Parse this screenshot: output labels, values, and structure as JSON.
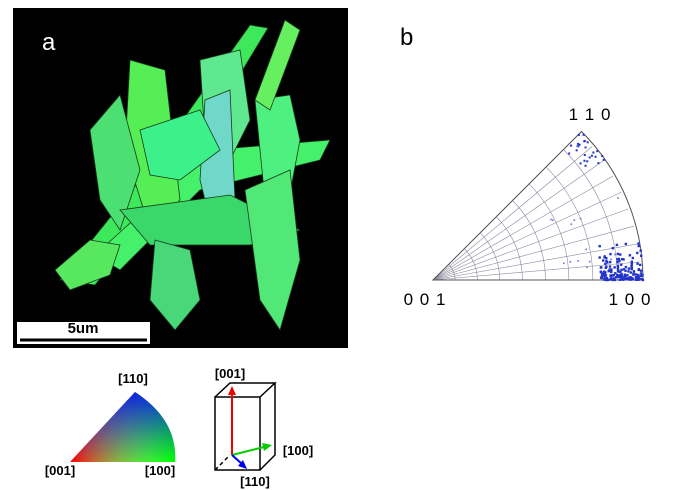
{
  "panel_a": {
    "label": "a",
    "scale_bar": "5um"
  },
  "color_key": {
    "triangle": {
      "top": "[110]",
      "left": "[001]",
      "right": "[100]"
    },
    "prism": {
      "top": "[001]",
      "right": "[100]",
      "bottom": "[110]"
    }
  },
  "panel_b": {
    "label": "b",
    "top": "1 1 0",
    "left": "0 0 1",
    "right": "1 0 0"
  }
}
